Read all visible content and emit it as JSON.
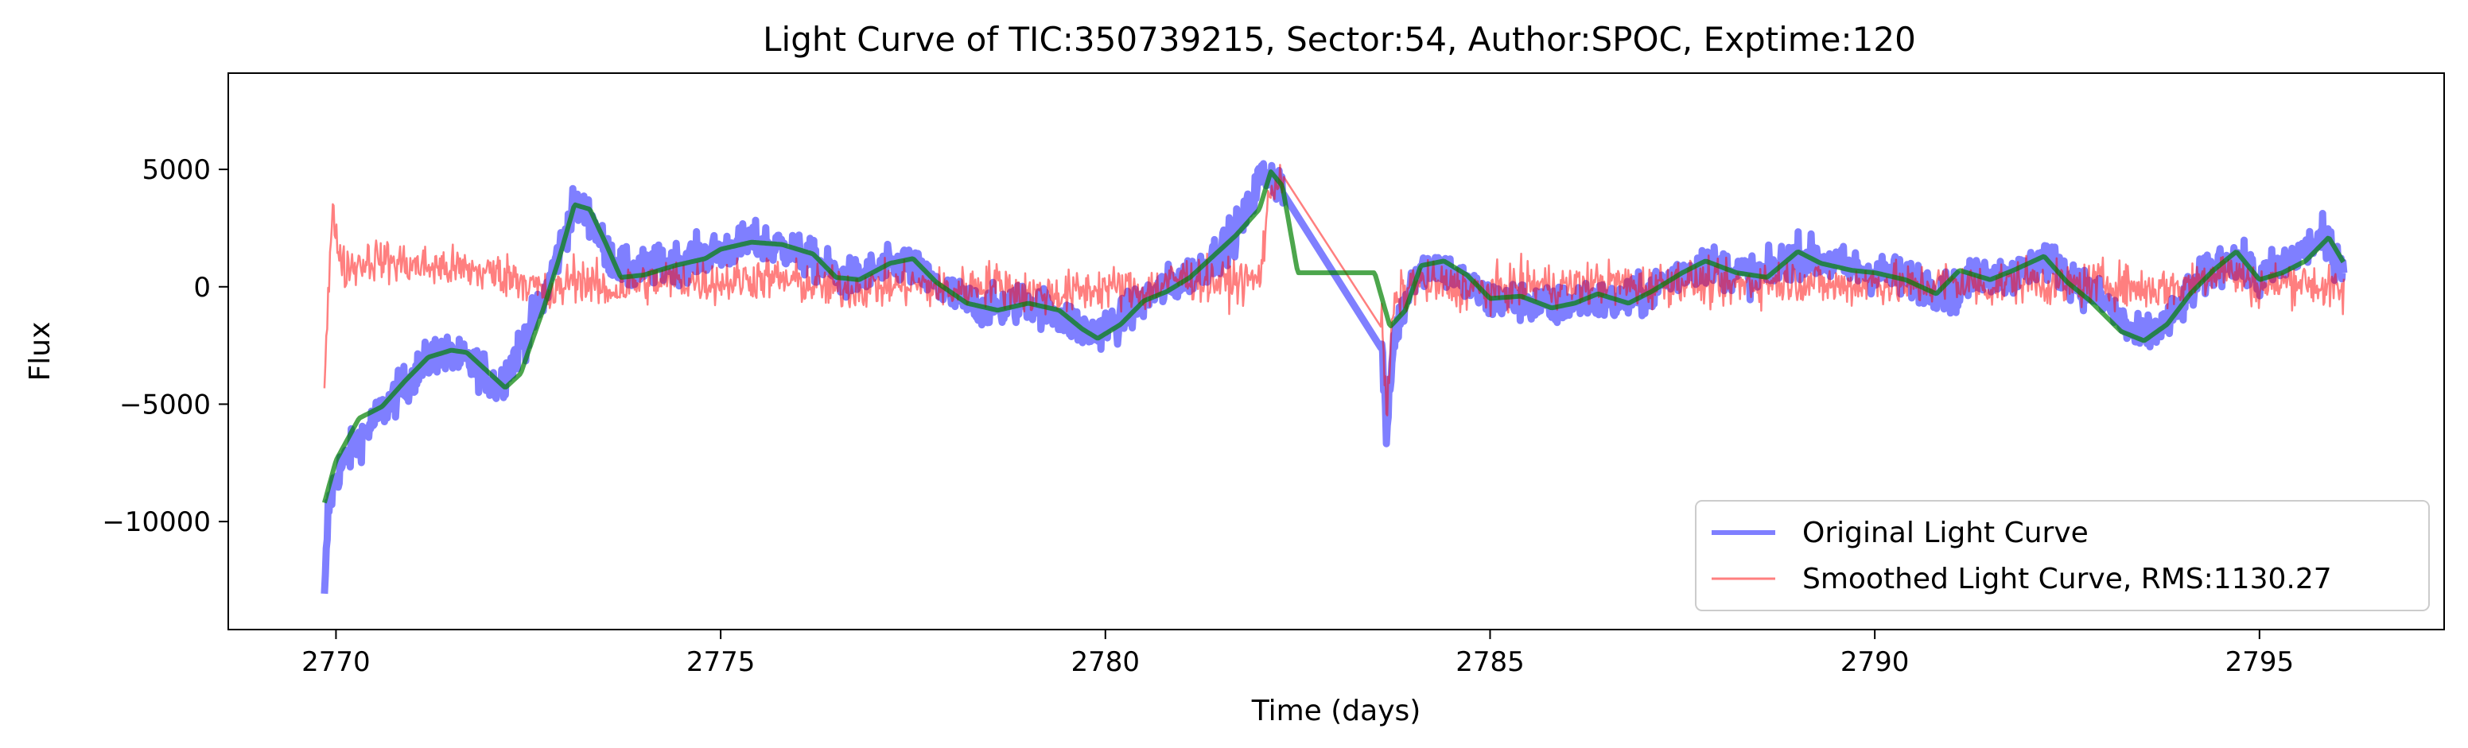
{
  "chart_data": {
    "type": "line",
    "title": "Light Curve of TIC:350739215, Sector:54, Author:SPOC, Exptime:120",
    "xlabel": "Time (days)",
    "ylabel": "Flux",
    "xlim": [
      2768.6,
      2797.4
    ],
    "ylim": [
      -14600,
      9100
    ],
    "xticks": [
      2770,
      2775,
      2780,
      2785,
      2790,
      2795
    ],
    "xtick_labels": [
      "2770",
      "2775",
      "2780",
      "2785",
      "2790",
      "2795"
    ],
    "yticks": [
      -10000,
      -5000,
      0,
      5000
    ],
    "ytick_labels": [
      "−10000",
      "−5000",
      "0",
      "5000"
    ],
    "grid": false,
    "legend_position": "lower-right",
    "data_gap": [
      2782.3,
      2783.6
    ],
    "series": [
      {
        "name": "Original Light Curve",
        "color": "#0000ff",
        "opacity": 0.5,
        "anchors": [
          [
            2769.85,
            -13500
          ],
          [
            2769.9,
            -9500
          ],
          [
            2770.0,
            -8000
          ],
          [
            2770.3,
            -6500
          ],
          [
            2770.6,
            -5300
          ],
          [
            2771.0,
            -3800
          ],
          [
            2771.3,
            -2800
          ],
          [
            2771.6,
            -3100
          ],
          [
            2771.9,
            -3500
          ],
          [
            2772.1,
            -4300
          ],
          [
            2772.4,
            -2500
          ],
          [
            2772.7,
            -500
          ],
          [
            2772.9,
            1500
          ],
          [
            2773.1,
            3500
          ],
          [
            2773.3,
            3000
          ],
          [
            2773.5,
            1500
          ],
          [
            2773.8,
            600
          ],
          [
            2774.2,
            900
          ],
          [
            2774.6,
            1200
          ],
          [
            2775.0,
            1500
          ],
          [
            2775.4,
            1900
          ],
          [
            2775.8,
            1700
          ],
          [
            2776.2,
            1100
          ],
          [
            2776.6,
            300
          ],
          [
            2777.0,
            600
          ],
          [
            2777.4,
            1000
          ],
          [
            2777.8,
            0
          ],
          [
            2778.2,
            -700
          ],
          [
            2778.6,
            -900
          ],
          [
            2779.0,
            -600
          ],
          [
            2779.4,
            -1200
          ],
          [
            2779.8,
            -2000
          ],
          [
            2780.2,
            -1400
          ],
          [
            2780.6,
            -300
          ],
          [
            2781.0,
            300
          ],
          [
            2781.4,
            1200
          ],
          [
            2781.8,
            2800
          ],
          [
            2782.0,
            4600
          ],
          [
            2782.15,
            4800
          ],
          [
            2782.3,
            4200
          ],
          [
            2783.6,
            -2700
          ],
          [
            2783.65,
            -6500
          ],
          [
            2783.75,
            -2200
          ],
          [
            2784.0,
            600
          ],
          [
            2784.3,
            1000
          ],
          [
            2784.6,
            300
          ],
          [
            2785.0,
            -600
          ],
          [
            2785.4,
            -600
          ],
          [
            2785.8,
            -900
          ],
          [
            2786.2,
            -500
          ],
          [
            2786.6,
            -700
          ],
          [
            2787.0,
            -400
          ],
          [
            2787.4,
            500
          ],
          [
            2787.8,
            1000
          ],
          [
            2788.2,
            600
          ],
          [
            2788.6,
            500
          ],
          [
            2789.0,
            1400
          ],
          [
            2789.4,
            1000
          ],
          [
            2789.8,
            700
          ],
          [
            2790.2,
            500
          ],
          [
            2790.6,
            200
          ],
          [
            2791.0,
            -300
          ],
          [
            2791.4,
            600
          ],
          [
            2791.8,
            400
          ],
          [
            2792.2,
            1200
          ],
          [
            2792.6,
            300
          ],
          [
            2793.0,
            -700
          ],
          [
            2793.4,
            -2200
          ],
          [
            2793.8,
            -1600
          ],
          [
            2794.2,
            200
          ],
          [
            2794.6,
            1300
          ],
          [
            2795.0,
            300
          ],
          [
            2795.4,
            1200
          ],
          [
            2795.8,
            2000
          ],
          [
            2796.1,
            1000
          ]
        ],
        "noise": 1100,
        "thick": 9
      },
      {
        "name": "Smoothed Light Curve, RMS:1130.27",
        "color": "#ff0000",
        "opacity": 0.5,
        "anchors": [
          [
            2769.85,
            -4000
          ],
          [
            2769.95,
            3000
          ],
          [
            2770.1,
            800
          ],
          [
            2770.5,
            1200
          ],
          [
            2771.0,
            900
          ],
          [
            2771.5,
            800
          ],
          [
            2772.0,
            600
          ],
          [
            2772.4,
            400
          ],
          [
            2772.8,
            -500
          ],
          [
            2773.1,
            500
          ],
          [
            2773.5,
            -200
          ],
          [
            2774.0,
            200
          ],
          [
            2774.5,
            300
          ],
          [
            2775.0,
            200
          ],
          [
            2775.5,
            400
          ],
          [
            2776.0,
            200
          ],
          [
            2776.5,
            -100
          ],
          [
            2777.0,
            0
          ],
          [
            2777.5,
            100
          ],
          [
            2778.0,
            -200
          ],
          [
            2778.5,
            200
          ],
          [
            2779.0,
            -300
          ],
          [
            2779.5,
            -300
          ],
          [
            2780.0,
            0
          ],
          [
            2780.5,
            -200
          ],
          [
            2781.0,
            400
          ],
          [
            2781.5,
            200
          ],
          [
            2782.0,
            300
          ],
          [
            2782.15,
            4200
          ],
          [
            2782.3,
            4800
          ],
          [
            2783.6,
            -1800
          ],
          [
            2783.65,
            -5500
          ],
          [
            2783.75,
            -800
          ],
          [
            2784.0,
            200
          ],
          [
            2784.5,
            0
          ],
          [
            2785.0,
            -200
          ],
          [
            2785.5,
            100
          ],
          [
            2786.0,
            0
          ],
          [
            2786.5,
            200
          ],
          [
            2787.0,
            0
          ],
          [
            2787.5,
            300
          ],
          [
            2788.0,
            0
          ],
          [
            2788.5,
            200
          ],
          [
            2789.0,
            300
          ],
          [
            2789.5,
            0
          ],
          [
            2790.0,
            200
          ],
          [
            2790.5,
            0
          ],
          [
            2791.0,
            200
          ],
          [
            2791.5,
            0
          ],
          [
            2792.0,
            300
          ],
          [
            2792.5,
            0
          ],
          [
            2793.0,
            200
          ],
          [
            2793.5,
            -100
          ],
          [
            2794.0,
            0
          ],
          [
            2794.5,
            800
          ],
          [
            2795.0,
            0
          ],
          [
            2795.5,
            300
          ],
          [
            2796.1,
            -300
          ]
        ],
        "noise": 1200,
        "thick": 2.5
      },
      {
        "color": "#008000",
        "opacity": 0.7,
        "anchors": [
          [
            2769.85,
            -9200
          ],
          [
            2770.0,
            -7400
          ],
          [
            2770.3,
            -5600
          ],
          [
            2770.6,
            -5100
          ],
          [
            2770.9,
            -4000
          ],
          [
            2771.2,
            -3000
          ],
          [
            2771.5,
            -2700
          ],
          [
            2771.7,
            -2800
          ],
          [
            2772.0,
            -3700
          ],
          [
            2772.2,
            -4300
          ],
          [
            2772.4,
            -3700
          ],
          [
            2772.7,
            -900
          ],
          [
            2772.9,
            1200
          ],
          [
            2773.1,
            3500
          ],
          [
            2773.3,
            3300
          ],
          [
            2773.5,
            1900
          ],
          [
            2773.7,
            400
          ],
          [
            2774.0,
            500
          ],
          [
            2774.4,
            900
          ],
          [
            2774.8,
            1200
          ],
          [
            2775.0,
            1600
          ],
          [
            2775.4,
            1900
          ],
          [
            2775.8,
            1800
          ],
          [
            2776.2,
            1400
          ],
          [
            2776.5,
            400
          ],
          [
            2776.8,
            300
          ],
          [
            2777.2,
            1000
          ],
          [
            2777.5,
            1200
          ],
          [
            2777.8,
            200
          ],
          [
            2778.2,
            -700
          ],
          [
            2778.6,
            -1000
          ],
          [
            2779.0,
            -700
          ],
          [
            2779.4,
            -1000
          ],
          [
            2779.7,
            -1800
          ],
          [
            2779.9,
            -2200
          ],
          [
            2780.2,
            -1600
          ],
          [
            2780.5,
            -600
          ],
          [
            2780.8,
            -200
          ],
          [
            2781.1,
            400
          ],
          [
            2781.4,
            1300
          ],
          [
            2781.7,
            2200
          ],
          [
            2782.0,
            3300
          ],
          [
            2782.15,
            4900
          ],
          [
            2782.3,
            4300
          ],
          [
            2782.5,
            600
          ],
          [
            2783.5,
            600
          ],
          [
            2783.7,
            -1700
          ],
          [
            2783.9,
            -1000
          ],
          [
            2784.1,
            900
          ],
          [
            2784.4,
            1100
          ],
          [
            2784.7,
            500
          ],
          [
            2785.0,
            -500
          ],
          [
            2785.4,
            -400
          ],
          [
            2785.8,
            -900
          ],
          [
            2786.1,
            -700
          ],
          [
            2786.4,
            -300
          ],
          [
            2786.8,
            -700
          ],
          [
            2787.1,
            -200
          ],
          [
            2787.5,
            600
          ],
          [
            2787.8,
            1100
          ],
          [
            2788.2,
            600
          ],
          [
            2788.6,
            400
          ],
          [
            2789.0,
            1500
          ],
          [
            2789.3,
            1000
          ],
          [
            2789.7,
            700
          ],
          [
            2790.0,
            600
          ],
          [
            2790.4,
            300
          ],
          [
            2790.8,
            -300
          ],
          [
            2791.1,
            700
          ],
          [
            2791.5,
            300
          ],
          [
            2791.8,
            700
          ],
          [
            2792.2,
            1300
          ],
          [
            2792.5,
            200
          ],
          [
            2792.8,
            -600
          ],
          [
            2793.2,
            -1900
          ],
          [
            2793.5,
            -2300
          ],
          [
            2793.8,
            -1600
          ],
          [
            2794.1,
            -300
          ],
          [
            2794.4,
            700
          ],
          [
            2794.7,
            1500
          ],
          [
            2795.0,
            300
          ],
          [
            2795.3,
            600
          ],
          [
            2795.6,
            1100
          ],
          [
            2795.9,
            2100
          ],
          [
            2796.1,
            1000
          ]
        ],
        "noise": 0,
        "thick": 6
      }
    ]
  }
}
